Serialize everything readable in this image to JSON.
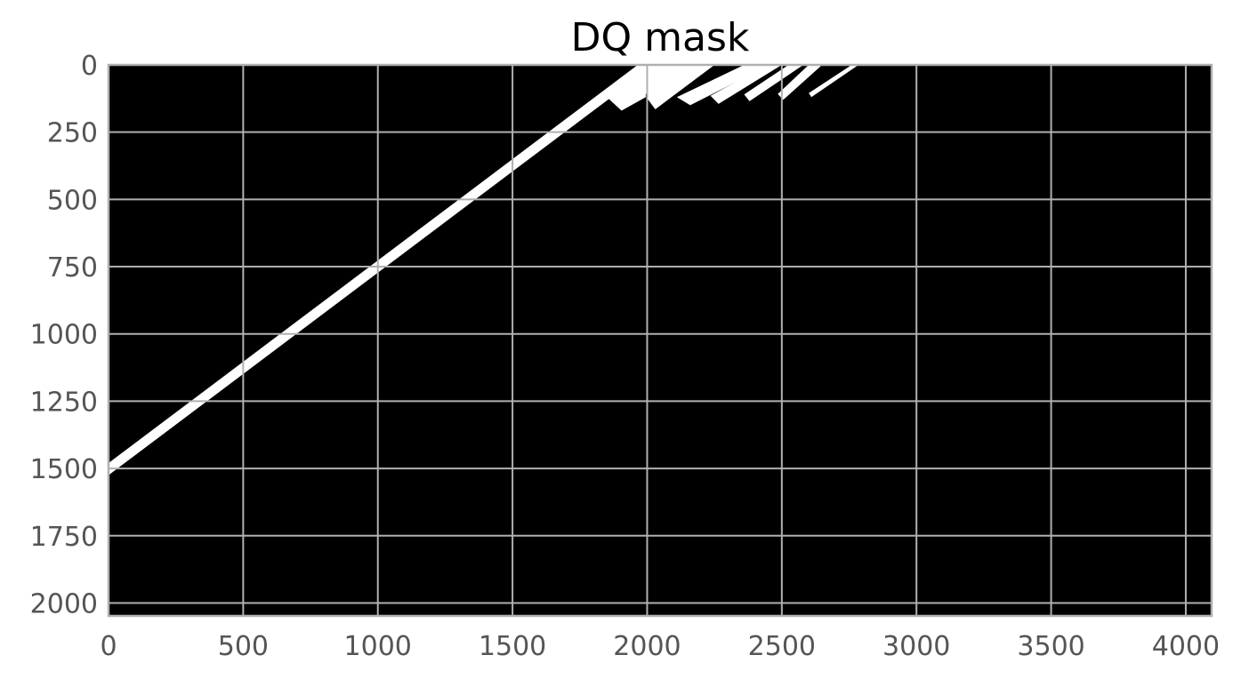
{
  "chart_data": {
    "type": "heatmap",
    "title": "DQ mask",
    "xlabel": "",
    "ylabel": "",
    "xlim": [
      0,
      4096
    ],
    "ylim": [
      2048,
      0
    ],
    "y_axis_inverted": true,
    "x_ticks": [
      0,
      500,
      1000,
      1500,
      2000,
      2500,
      3000,
      3500,
      4000
    ],
    "y_ticks": [
      0,
      250,
      500,
      750,
      1000,
      1250,
      1500,
      1750,
      2000
    ],
    "grid": true,
    "colormap": "gray",
    "background_value": 0,
    "mask_value": 1,
    "colors": {
      "background": "#000000",
      "mask": "#ffffff",
      "grid": "#b0b0b0",
      "tick_text": "#555555",
      "title": "#000000"
    },
    "masked_regions": [
      {
        "name": "main-diagonal-streak",
        "polygon": [
          [
            0,
            1480
          ],
          [
            1965,
            0
          ],
          [
            2000,
            0
          ],
          [
            2000,
            110
          ],
          [
            1920,
            80
          ],
          [
            0,
            1525
          ]
        ]
      },
      {
        "name": "streak-main-tip",
        "polygon": [
          [
            1850,
            120
          ],
          [
            1990,
            30
          ],
          [
            1995,
            120
          ],
          [
            1905,
            170
          ]
        ]
      },
      {
        "name": "streak-1",
        "polygon": [
          [
            2000,
            0
          ],
          [
            2250,
            0
          ],
          [
            2030,
            165
          ],
          [
            2000,
            125
          ]
        ]
      },
      {
        "name": "streak-2",
        "polygon": [
          [
            2110,
            120
          ],
          [
            2360,
            0
          ],
          [
            2455,
            0
          ],
          [
            2160,
            150
          ]
        ]
      },
      {
        "name": "streak-3",
        "polygon": [
          [
            2235,
            115
          ],
          [
            2445,
            0
          ],
          [
            2500,
            0
          ],
          [
            2265,
            145
          ]
        ]
      },
      {
        "name": "streak-4",
        "polygon": [
          [
            2360,
            110
          ],
          [
            2525,
            0
          ],
          [
            2580,
            0
          ],
          [
            2380,
            135
          ]
        ]
      },
      {
        "name": "streak-5",
        "polygon": [
          [
            2485,
            108
          ],
          [
            2600,
            0
          ],
          [
            2650,
            0
          ],
          [
            2505,
            130
          ]
        ]
      },
      {
        "name": "streak-6",
        "polygon": [
          [
            2600,
            105
          ],
          [
            2760,
            0
          ],
          [
            2785,
            0
          ],
          [
            2610,
            120
          ]
        ]
      }
    ]
  }
}
